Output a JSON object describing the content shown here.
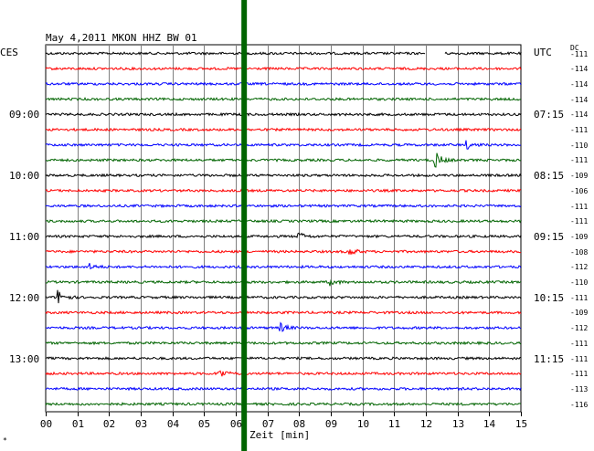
{
  "header": {
    "title": "May 4,2011   MKON HHZ BW 01",
    "left_tz": "CES",
    "right_tz": "UTC",
    "dc_label": "DC"
  },
  "chart_data": {
    "type": "line",
    "title": "May 4,2011   MKON HHZ BW 01",
    "xlabel": "Zeit [min]",
    "ylabel": "",
    "xlim": [
      0,
      15
    ],
    "x_ticks": [
      "00",
      "01",
      "02",
      "03",
      "04",
      "05",
      "06",
      "07",
      "08",
      "09",
      "10",
      "11",
      "12",
      "13",
      "14",
      "15"
    ],
    "grid": true,
    "trace_colors": [
      "#000000",
      "#ff0000",
      "#0000ff",
      "#006400"
    ],
    "trace_count": 24,
    "left_time_labels": [
      {
        "trace": 4,
        "text": "09:00"
      },
      {
        "trace": 8,
        "text": "10:00"
      },
      {
        "trace": 12,
        "text": "11:00"
      },
      {
        "trace": 16,
        "text": "12:00"
      },
      {
        "trace": 20,
        "text": "13:00"
      }
    ],
    "right_time_labels": [
      {
        "trace": 4,
        "text": "07:15"
      },
      {
        "trace": 8,
        "text": "08:15"
      },
      {
        "trace": 12,
        "text": "09:15"
      },
      {
        "trace": 16,
        "text": "10:15"
      },
      {
        "trace": 20,
        "text": "11:15"
      }
    ],
    "dc_offsets": [
      "-111",
      "-114",
      "-114",
      "-114",
      "-114",
      "-111",
      "-110",
      "-111",
      "-109",
      "-106",
      "-111",
      "-111",
      "-109",
      "-108",
      "-112",
      "-110",
      "-111",
      "-109",
      "-112",
      "-111",
      "-111",
      "-111",
      "-113",
      "-116"
    ],
    "events": [
      {
        "trace": 7,
        "minute": 12.3,
        "amplitude": 9
      },
      {
        "trace": 6,
        "minute": 13.3,
        "amplitude": 4
      },
      {
        "trace": 12,
        "minute": 8.0,
        "amplitude": 4
      },
      {
        "trace": 13,
        "minute": 9.6,
        "amplitude": 4
      },
      {
        "trace": 14,
        "minute": 1.4,
        "amplitude": 3
      },
      {
        "trace": 16,
        "minute": 0.4,
        "amplitude": 8
      },
      {
        "trace": 18,
        "minute": 7.4,
        "amplitude": 5
      },
      {
        "trace": 21,
        "minute": 5.5,
        "amplitude": 5
      },
      {
        "trace": 15,
        "minute": 9.0,
        "amplitude": 3
      }
    ],
    "marker_minute": 6.25,
    "marker_color": "#006400",
    "gap": {
      "trace": 0,
      "from_minute": 12.0,
      "to_minute": 12.6
    }
  },
  "footer": {
    "corner_mark": "*"
  }
}
